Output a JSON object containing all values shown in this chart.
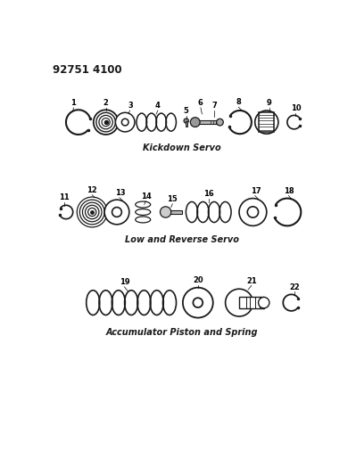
{
  "title": "92751 4100",
  "background_color": "#ffffff",
  "line_color": "#1a1a1a",
  "section1_label": "Kickdown Servo",
  "section2_label": "Low and Reverse Servo",
  "section3_label": "Accumulator Piston and Spring",
  "figsize": [
    3.99,
    5.33
  ],
  "dpi": 100
}
